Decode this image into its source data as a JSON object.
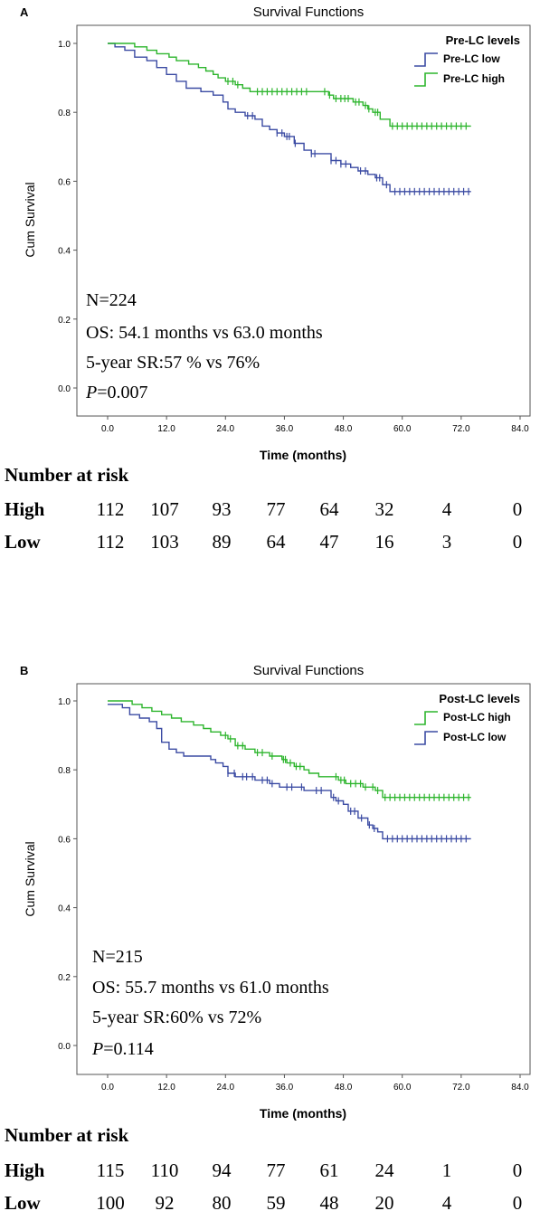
{
  "chart_data": [
    {
      "type": "line",
      "panel_label": "A",
      "title": "Survival Functions",
      "xlabel": "Time (months)",
      "ylabel": "Cum Survival",
      "xlim": [
        0,
        84
      ],
      "ylim": [
        0,
        1
      ],
      "x_ticks": [
        "0.0",
        "12.0",
        "24.0",
        "36.0",
        "48.0",
        "60.0",
        "72.0",
        "84.0"
      ],
      "y_ticks": [
        "0.0",
        "0.2",
        "0.4",
        "0.6",
        "0.8",
        "1.0"
      ],
      "legend_title": "Pre-LC levels",
      "legend_position": "top-right",
      "series": [
        {
          "name": "Pre-LC low",
          "color": "#3b4ba3",
          "points": [
            [
              0,
              1.0
            ],
            [
              1.5,
              0.99
            ],
            [
              3.5,
              0.98
            ],
            [
              5.5,
              0.96
            ],
            [
              8,
              0.95
            ],
            [
              10,
              0.93
            ],
            [
              12,
              0.91
            ],
            [
              14,
              0.89
            ],
            [
              16,
              0.87
            ],
            [
              19,
              0.86
            ],
            [
              21.5,
              0.85
            ],
            [
              23.5,
              0.83
            ],
            [
              24.5,
              0.81
            ],
            [
              26,
              0.8
            ],
            [
              28,
              0.79
            ],
            [
              30,
              0.78
            ],
            [
              31.5,
              0.76
            ],
            [
              33,
              0.75
            ],
            [
              34.5,
              0.74
            ],
            [
              36,
              0.73
            ],
            [
              38,
              0.71
            ],
            [
              40,
              0.69
            ],
            [
              41.5,
              0.68
            ],
            [
              44,
              0.68
            ],
            [
              45.5,
              0.66
            ],
            [
              47.5,
              0.65
            ],
            [
              49.5,
              0.64
            ],
            [
              51,
              0.63
            ],
            [
              53,
              0.62
            ],
            [
              54.5,
              0.61
            ],
            [
              56,
              0.59
            ],
            [
              57.5,
              0.57
            ],
            [
              74,
              0.57
            ]
          ],
          "censors": [
            28.5,
            29.5,
            34.5,
            35.5,
            36.5,
            37,
            38.2,
            41.5,
            42.2,
            45.5,
            46.5,
            47.5,
            48.5,
            51.5,
            52.5,
            54.8,
            55.4,
            56.8,
            58.5,
            59.5,
            60.5,
            61.5,
            62.5,
            63.5,
            64.5,
            65.5,
            66.5,
            67.5,
            68.5,
            69.5,
            70.5,
            71.5,
            72.5,
            73.5
          ]
        },
        {
          "name": "Pre-LC high",
          "color": "#2db52d",
          "points": [
            [
              0,
              1.0
            ],
            [
              4,
              1.0
            ],
            [
              5.5,
              0.99
            ],
            [
              8,
              0.98
            ],
            [
              10,
              0.97
            ],
            [
              12.5,
              0.96
            ],
            [
              14,
              0.95
            ],
            [
              16.5,
              0.94
            ],
            [
              18.5,
              0.93
            ],
            [
              20,
              0.92
            ],
            [
              21.5,
              0.91
            ],
            [
              22.5,
              0.9
            ],
            [
              24,
              0.89
            ],
            [
              26,
              0.88
            ],
            [
              27.5,
              0.87
            ],
            [
              29,
              0.86
            ],
            [
              30,
              0.86
            ],
            [
              44,
              0.86
            ],
            [
              45,
              0.85
            ],
            [
              46,
              0.84
            ],
            [
              48.5,
              0.84
            ],
            [
              50,
              0.83
            ],
            [
              52,
              0.82
            ],
            [
              53,
              0.81
            ],
            [
              54,
              0.8
            ],
            [
              55.5,
              0.78
            ],
            [
              57.5,
              0.76
            ],
            [
              74,
              0.76
            ]
          ],
          "censors": [
            24.5,
            25.5,
            26.5,
            30.5,
            31.5,
            32.5,
            33.5,
            34.5,
            35.5,
            36.5,
            37.5,
            38.5,
            39.5,
            40.5,
            44.2,
            45.2,
            46.5,
            47.5,
            48.3,
            49,
            50.5,
            51.2,
            52.5,
            53.2,
            54.5,
            55,
            58,
            59,
            60,
            61,
            62,
            63,
            64,
            65,
            66,
            67,
            68,
            69,
            70,
            71,
            72,
            73
          ]
        }
      ],
      "annotations": [
        "N=224",
        "OS: 54.1 months vs 63.0 months",
        "5-year SR:57 % vs 76%"
      ],
      "p_label": "P",
      "p_value": "=0.007",
      "risk_table": {
        "title": "Number at risk",
        "rows": [
          {
            "label": "High",
            "values": [
              "112",
              "107",
              "93",
              "77",
              "64",
              "32",
              "4",
              "0"
            ]
          },
          {
            "label": "Low",
            "values": [
              "112",
              "103",
              "89",
              "64",
              "47",
              "16",
              "3",
              "0"
            ]
          }
        ]
      }
    },
    {
      "type": "line",
      "panel_label": "B",
      "title": "Survival Functions",
      "xlabel": "Time (months)",
      "ylabel": "Cum Survival",
      "xlim": [
        0,
        84
      ],
      "ylim": [
        0,
        1
      ],
      "x_ticks": [
        "0.0",
        "12.0",
        "24.0",
        "36.0",
        "48.0",
        "60.0",
        "72.0",
        "84.0"
      ],
      "y_ticks": [
        "0.0",
        "0.2",
        "0.4",
        "0.6",
        "0.8",
        "1.0"
      ],
      "legend_title": "Post-LC levels",
      "legend_position": "top-right",
      "series": [
        {
          "name": "Post-LC high",
          "color": "#2db52d",
          "points": [
            [
              0,
              1.0
            ],
            [
              3.5,
              1.0
            ],
            [
              5,
              0.99
            ],
            [
              7,
              0.98
            ],
            [
              9,
              0.97
            ],
            [
              11,
              0.96
            ],
            [
              13,
              0.95
            ],
            [
              15,
              0.94
            ],
            [
              17.5,
              0.93
            ],
            [
              19.5,
              0.92
            ],
            [
              21,
              0.91
            ],
            [
              23,
              0.9
            ],
            [
              24.5,
              0.89
            ],
            [
              26,
              0.87
            ],
            [
              28,
              0.86
            ],
            [
              30,
              0.85
            ],
            [
              33,
              0.84
            ],
            [
              35.5,
              0.83
            ],
            [
              36.5,
              0.82
            ],
            [
              38,
              0.81
            ],
            [
              40,
              0.8
            ],
            [
              41,
              0.79
            ],
            [
              43,
              0.78
            ],
            [
              47,
              0.77
            ],
            [
              48.5,
              0.76
            ],
            [
              52,
              0.75
            ],
            [
              54.5,
              0.74
            ],
            [
              56,
              0.72
            ],
            [
              74,
              0.72
            ]
          ],
          "censors": [
            24,
            25,
            26.5,
            27.5,
            30.5,
            31.5,
            33.5,
            35.8,
            36.2,
            37.2,
            38.4,
            39.2,
            46.5,
            47.5,
            48.2,
            49.5,
            50.5,
            51.5,
            52.5,
            54,
            55,
            56.5,
            57.5,
            58.5,
            59.5,
            60.5,
            61.5,
            62.5,
            63.5,
            64.5,
            65.5,
            66.5,
            67.5,
            68.5,
            69.5,
            70.5,
            71.5,
            72.5,
            73.5
          ]
        },
        {
          "name": "Post-LC low",
          "color": "#3b4ba3",
          "points": [
            [
              0,
              0.99
            ],
            [
              2.5,
              0.99
            ],
            [
              3,
              0.98
            ],
            [
              4.5,
              0.96
            ],
            [
              6.5,
              0.95
            ],
            [
              8.5,
              0.94
            ],
            [
              10,
              0.92
            ],
            [
              11,
              0.88
            ],
            [
              12.5,
              0.86
            ],
            [
              14,
              0.85
            ],
            [
              15.5,
              0.84
            ],
            [
              19,
              0.84
            ],
            [
              21,
              0.83
            ],
            [
              22,
              0.82
            ],
            [
              23.5,
              0.81
            ],
            [
              24.5,
              0.79
            ],
            [
              26,
              0.78
            ],
            [
              30,
              0.77
            ],
            [
              33,
              0.76
            ],
            [
              35,
              0.75
            ],
            [
              38,
              0.75
            ],
            [
              40,
              0.74
            ],
            [
              44.5,
              0.74
            ],
            [
              45.5,
              0.72
            ],
            [
              46.5,
              0.71
            ],
            [
              48,
              0.7
            ],
            [
              49,
              0.68
            ],
            [
              51,
              0.66
            ],
            [
              53,
              0.64
            ],
            [
              54,
              0.63
            ],
            [
              55,
              0.62
            ],
            [
              56,
              0.6
            ],
            [
              74,
              0.6
            ]
          ],
          "censors": [
            24.5,
            25.8,
            27.5,
            28.3,
            29.5,
            31.5,
            32.5,
            33.5,
            36.5,
            37.5,
            39.5,
            42.5,
            43.5,
            46,
            47,
            49.5,
            50.3,
            51.7,
            53.3,
            54.3,
            57,
            58,
            59,
            60,
            61,
            62,
            63,
            64,
            65,
            66,
            67,
            68,
            69,
            70,
            71,
            72,
            73
          ]
        }
      ],
      "annotations": [
        "N=215",
        "OS: 55.7 months vs 61.0 months",
        "5-year SR:60% vs 72%"
      ],
      "p_label": "P",
      "p_value": "=0.114",
      "risk_table": {
        "title": "Number at risk",
        "rows": [
          {
            "label": "High",
            "values": [
              "115",
              "110",
              "94",
              "77",
              "61",
              "24",
              "1",
              "0"
            ]
          },
          {
            "label": "Low",
            "values": [
              "100",
              "92",
              "80",
              "59",
              "48",
              "20",
              "4",
              "0"
            ]
          }
        ]
      }
    }
  ]
}
